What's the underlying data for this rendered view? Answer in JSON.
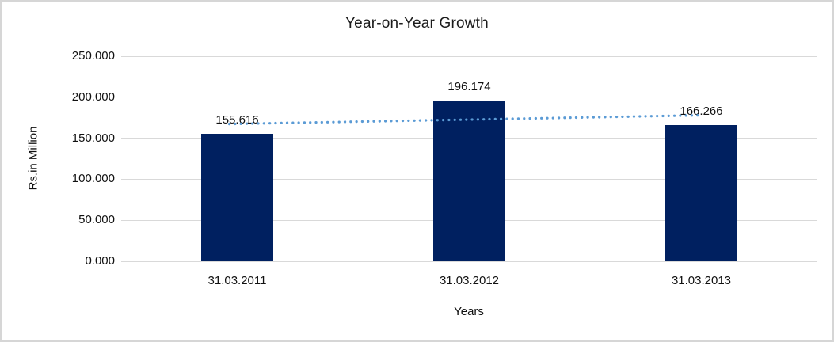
{
  "chart_data": {
    "type": "bar",
    "title": "Year-on-Year Growth",
    "categories": [
      "31.03.2011",
      "31.03.2012",
      "31.03.2013"
    ],
    "values": [
      155.616,
      196.174,
      166.266
    ],
    "data_labels": [
      "155.616",
      "196.174",
      "166.266"
    ],
    "xlabel": "Years",
    "ylabel": "Rs.in Million",
    "ylim": [
      0,
      250
    ],
    "ytick_step": 50,
    "ytick_labels": [
      "0.000",
      "50.000",
      "100.000",
      "150.000",
      "200.000",
      "250.000"
    ],
    "grid": true,
    "legend": false,
    "trendline": {
      "type": "linear",
      "style": "dotted"
    },
    "colors": {
      "bar": "#002060",
      "trendline": "#5b9bd5",
      "gridline": "#d9d9d9",
      "border": "#d6d6d6",
      "text": "#111111",
      "background": "#ffffff"
    }
  }
}
